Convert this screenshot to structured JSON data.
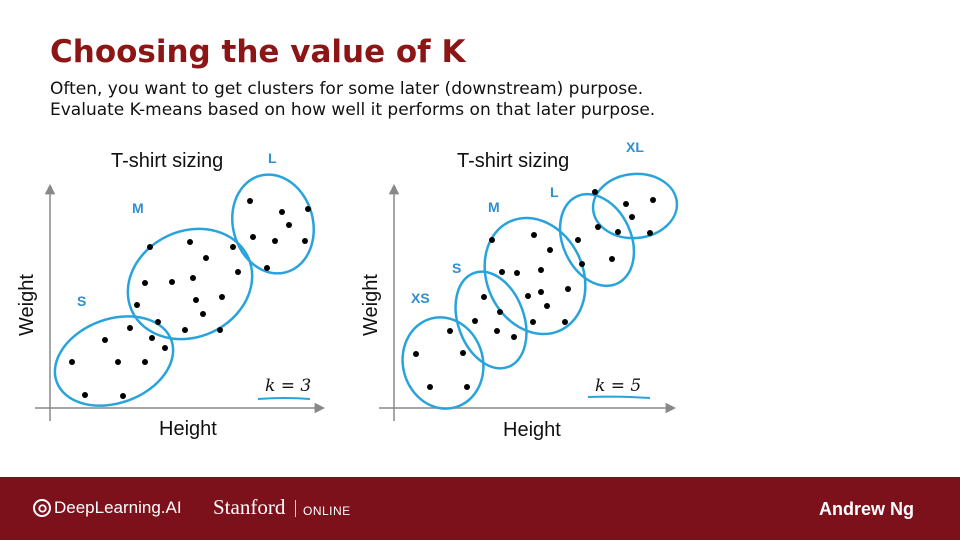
{
  "slide": {
    "title": "Choosing the value of K",
    "line1": "Often, you want to get clusters for some later (downstream) purpose.",
    "line2": "Evaluate K-means based on how well it performs on that later purpose."
  },
  "left_plot": {
    "title": "T-shirt sizing",
    "xlabel": "Height",
    "ylabel": "Weight",
    "k_label": "k = 3",
    "cluster_labels": [
      "S",
      "M",
      "L"
    ]
  },
  "right_plot": {
    "title": "T-shirt sizing",
    "xlabel": "Height",
    "ylabel": "Weight",
    "k_label": "k = 5",
    "cluster_labels": [
      "XS",
      "S",
      "M",
      "L",
      "XL"
    ]
  },
  "colors": {
    "title": "#8c1515",
    "cluster_outline": "#29a3dc",
    "cluster_label": "#2f8fcf",
    "footer": "#7d111b"
  },
  "footer": {
    "brand": "DeepLearning.AI",
    "university": "Stanford",
    "online": "ONLINE",
    "author": "Andrew Ng"
  }
}
